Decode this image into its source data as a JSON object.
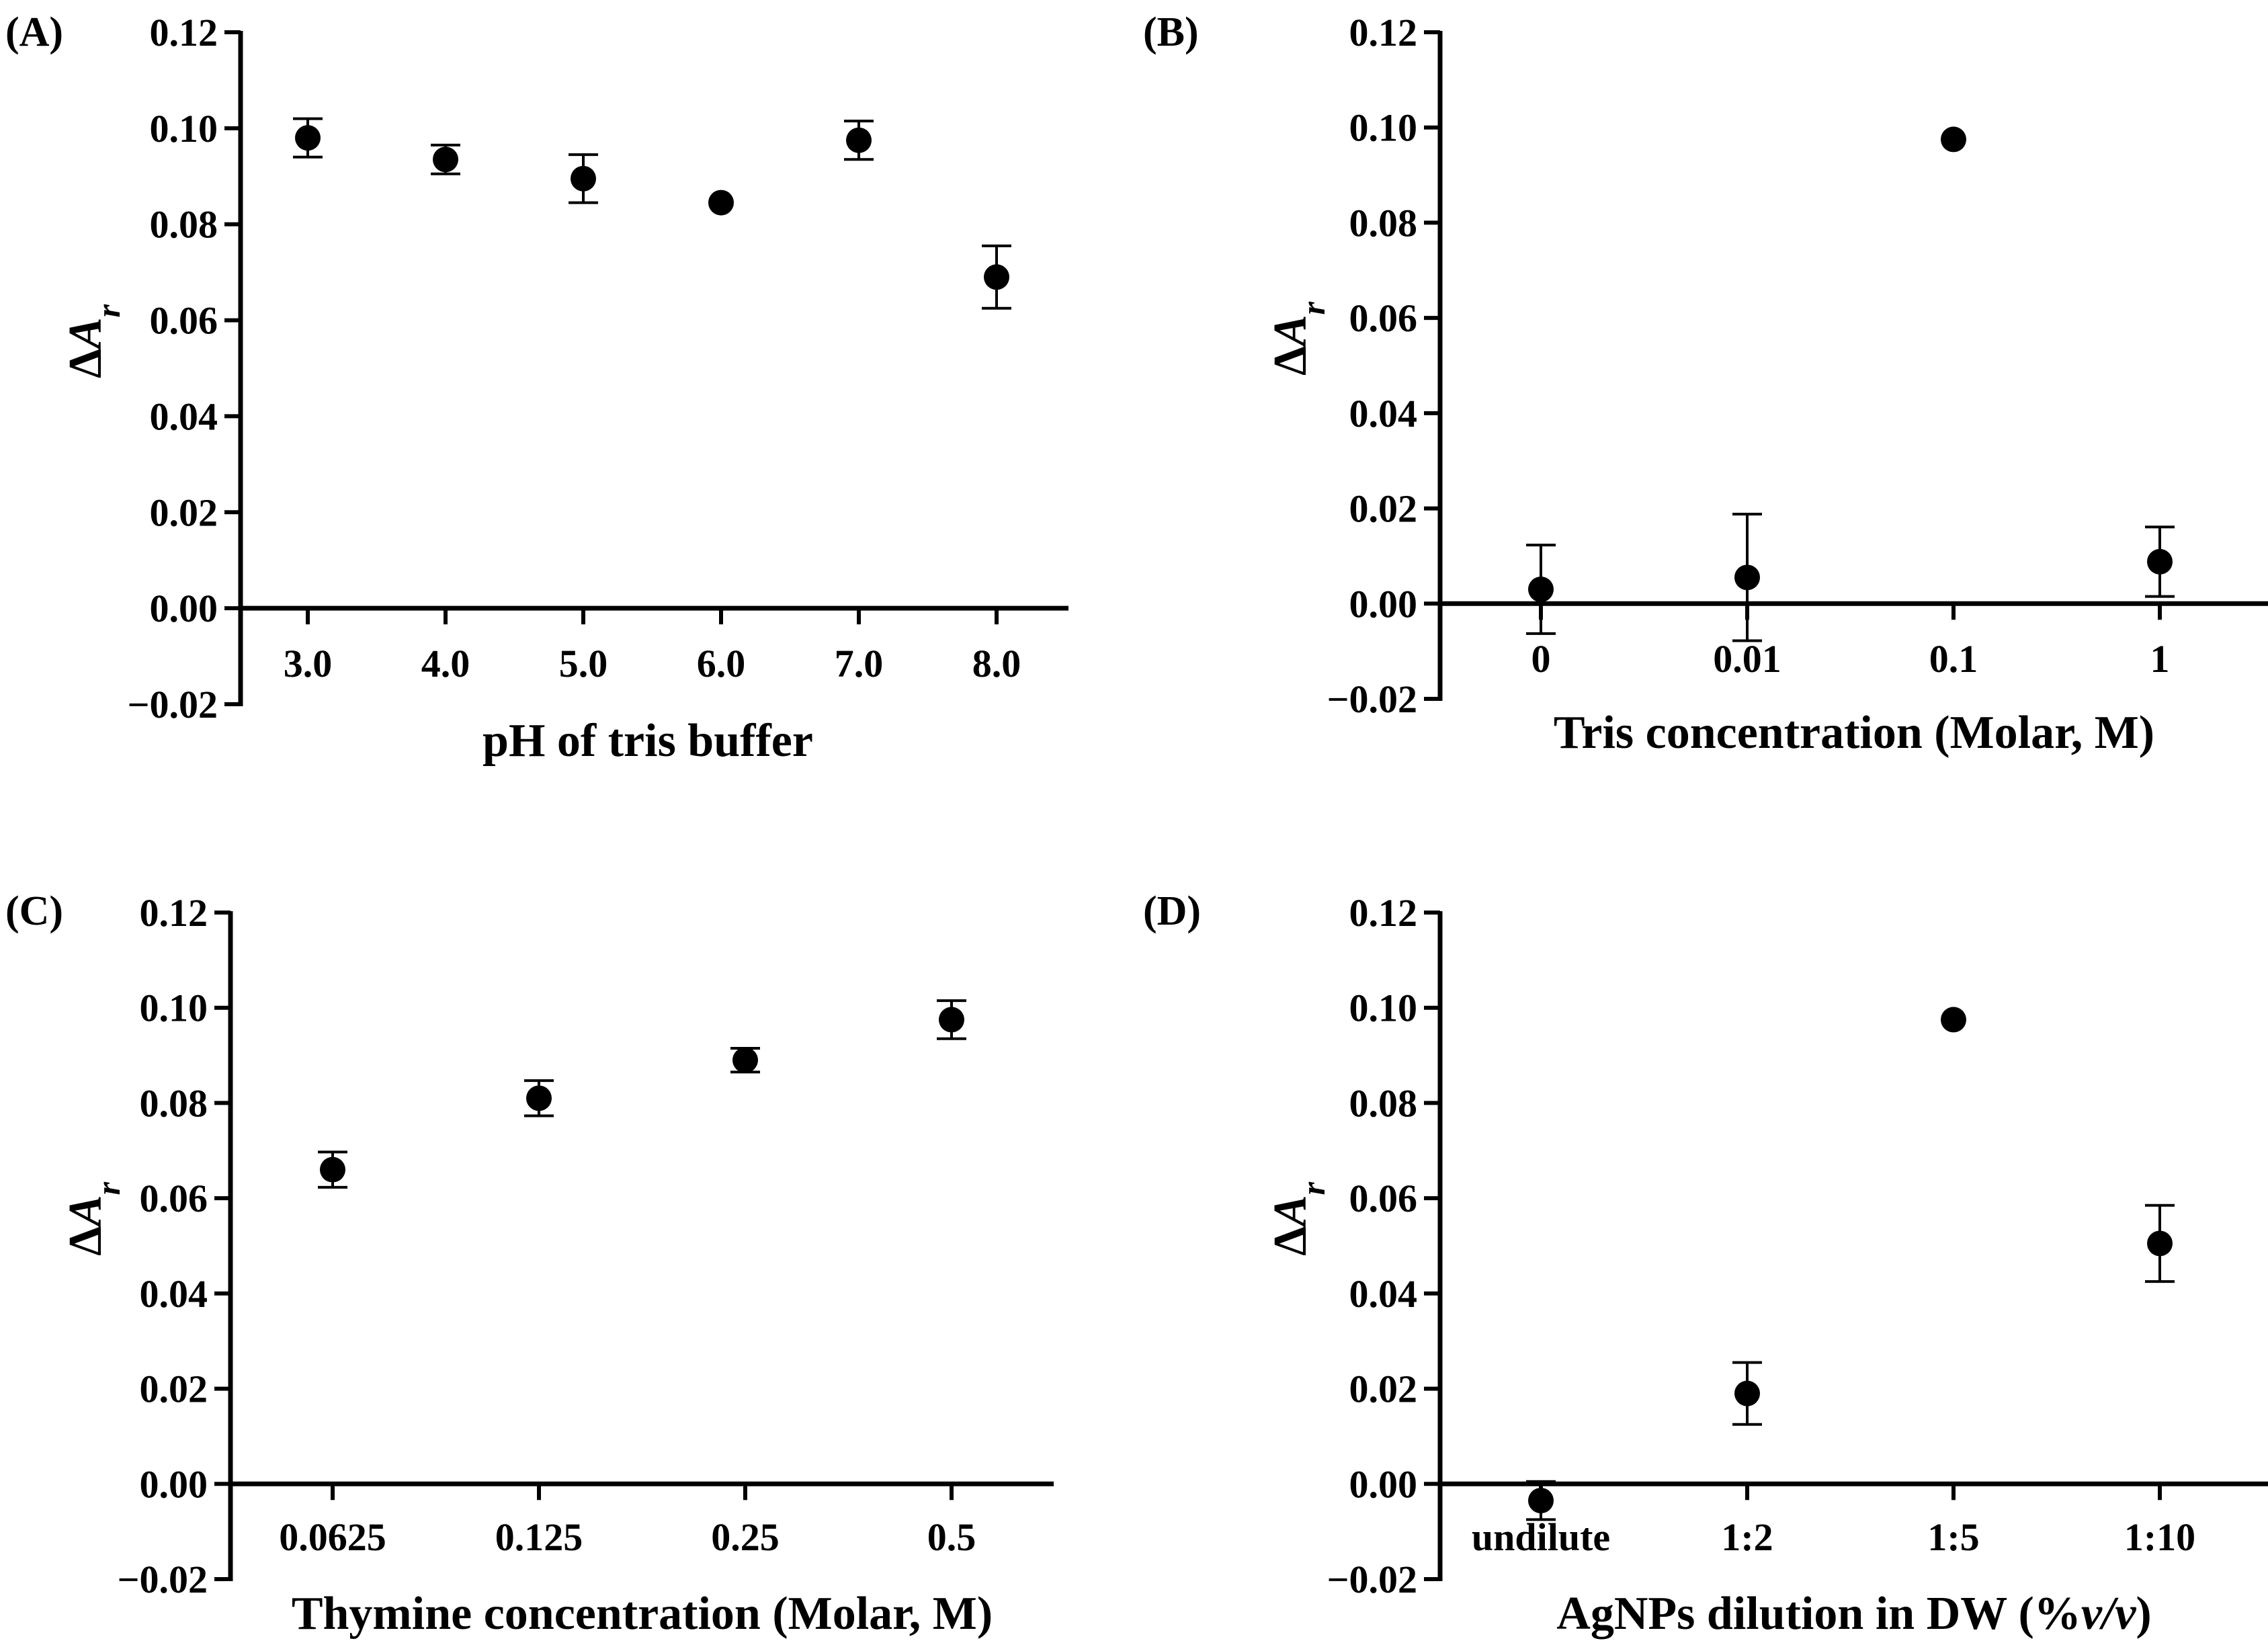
{
  "chart_data": [
    {
      "type": "scatter",
      "panel_label": "(A)",
      "title": "",
      "xlabel": "pH of tris buffer",
      "ylabel_main": "ΔA",
      "ylabel_sub": "r",
      "categories": [
        "3.0",
        "4.0",
        "5.0",
        "6.0",
        "7.0",
        "8.0"
      ],
      "values": [
        0.098,
        0.0935,
        0.0895,
        0.0845,
        0.0975,
        0.069
      ],
      "errors": [
        0.004,
        0.003,
        0.005,
        0.0,
        0.004,
        0.0065
      ],
      "ylim": [
        -0.02,
        0.12
      ],
      "yticks": [
        "−0.02",
        "0.00",
        "0.02",
        "0.04",
        "0.06",
        "0.08",
        "0.10",
        "0.12"
      ],
      "grid": false
    },
    {
      "type": "scatter",
      "panel_label": "(B)",
      "title": "",
      "xlabel": "Tris concentration (Molar, M)",
      "ylabel_main": "ΔA",
      "ylabel_sub": "r",
      "categories": [
        "0",
        "0.01",
        "0.1",
        "1"
      ],
      "values": [
        0.003,
        0.0055,
        0.0975,
        0.0088
      ],
      "errors": [
        0.0093,
        0.0133,
        0.0,
        0.0073
      ],
      "ylim": [
        -0.02,
        0.12
      ],
      "yticks": [
        "−0.02",
        "0.00",
        "0.02",
        "0.04",
        "0.06",
        "0.08",
        "0.10",
        "0.12"
      ],
      "grid": false
    },
    {
      "type": "scatter",
      "panel_label": "(C)",
      "title": "",
      "xlabel": "Thymine concentration (Molar, M)",
      "ylabel_main": "ΔA",
      "ylabel_sub": "r",
      "categories": [
        "0.0625",
        "0.125",
        "0.25",
        "0.5"
      ],
      "values": [
        0.066,
        0.081,
        0.089,
        0.0975
      ],
      "errors": [
        0.0037,
        0.0037,
        0.0025,
        0.004
      ],
      "ylim": [
        -0.02,
        0.12
      ],
      "yticks": [
        "−0.02",
        "0.00",
        "0.02",
        "0.04",
        "0.06",
        "0.08",
        "0.10",
        "0.12"
      ],
      "grid": false
    },
    {
      "type": "scatter",
      "panel_label": "(D)",
      "title": "",
      "xlabel": "AgNPs dilution in DW (%v/v)",
      "ylabel_main": "ΔA",
      "ylabel_sub": "r",
      "categories": [
        "undilute",
        "1:2",
        "1:5",
        "1:10"
      ],
      "values": [
        -0.0035,
        0.019,
        0.0975,
        0.0505
      ],
      "errors": [
        0.004,
        0.0065,
        0.0,
        0.008
      ],
      "ylim": [
        -0.02,
        0.12
      ],
      "yticks": [
        "−0.02",
        "0.00",
        "0.02",
        "0.04",
        "0.06",
        "0.08",
        "0.10",
        "0.12"
      ],
      "grid": false
    }
  ]
}
